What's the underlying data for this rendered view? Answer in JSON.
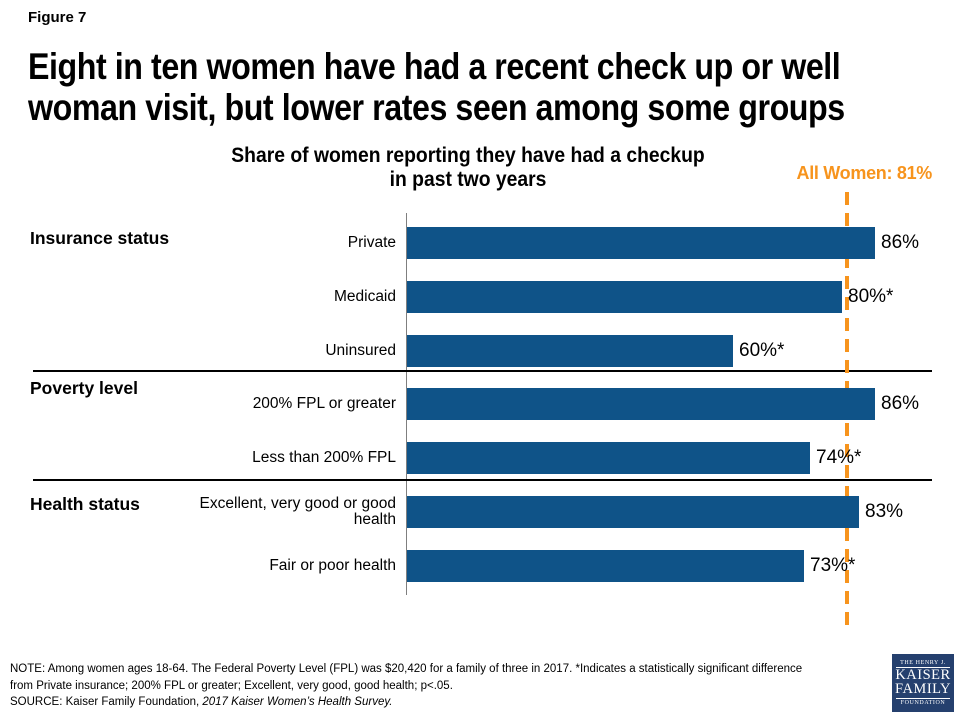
{
  "figure_label": "Figure 7",
  "title_line1": "Eight in ten women have had a recent check up or well",
  "title_line2": "woman visit, but lower rates seen among some groups",
  "chart_data": {
    "type": "bar",
    "orientation": "horizontal",
    "title": "Share of women reporting they have had a checkup in past two years",
    "title_lines": [
      "Share of women reporting they have had a checkup",
      "in past two years"
    ],
    "xlim": [
      0,
      100
    ],
    "grid": false,
    "groups": [
      {
        "label": "Insurance status",
        "rows": [
          {
            "category": "Private",
            "value": 86,
            "value_label": "86%"
          },
          {
            "category": "Medicaid",
            "value": 80,
            "value_label": "80%*"
          },
          {
            "category": "Uninsured",
            "value": 60,
            "value_label": "60%*"
          }
        ]
      },
      {
        "label": "Poverty level",
        "rows": [
          {
            "category": "200% FPL or greater",
            "value": 86,
            "value_label": "86%"
          },
          {
            "category": "Less than 200% FPL",
            "value": 74,
            "value_label": "74%*"
          }
        ]
      },
      {
        "label": "Health status",
        "rows": [
          {
            "category": "Excellent, very good or good health",
            "value": 83,
            "value_label": "83%"
          },
          {
            "category": "Fair or poor health",
            "value": 73,
            "value_label": "73%*"
          }
        ]
      }
    ],
    "reference_line": {
      "label": "All Women: 81%",
      "value": 81
    }
  },
  "note_line1": "NOTE:  Among women ages 18-64. The Federal Poverty Level (FPL) was $20,420 for a family of three in 2017. *Indicates a statistically significant difference",
  "note_line2": "from Private insurance; 200% FPL or greater; Excellent, very good, good health; p<.05.",
  "source_prefix": "SOURCE:  Kaiser Family Foundation, ",
  "source_italic": "2017 Kaiser Women’s Health Survey.",
  "logo": {
    "top": "THE HENRY J.",
    "name_line1": "KAISER",
    "name_line2": "FAMILY",
    "bottom": "FOUNDATION"
  },
  "colors": {
    "bar": "#0F5388",
    "reference": "#F7941D",
    "divider": "#000000",
    "axis": "#7F7F7F",
    "logo_bg": "#25406E",
    "text": "#000000"
  }
}
